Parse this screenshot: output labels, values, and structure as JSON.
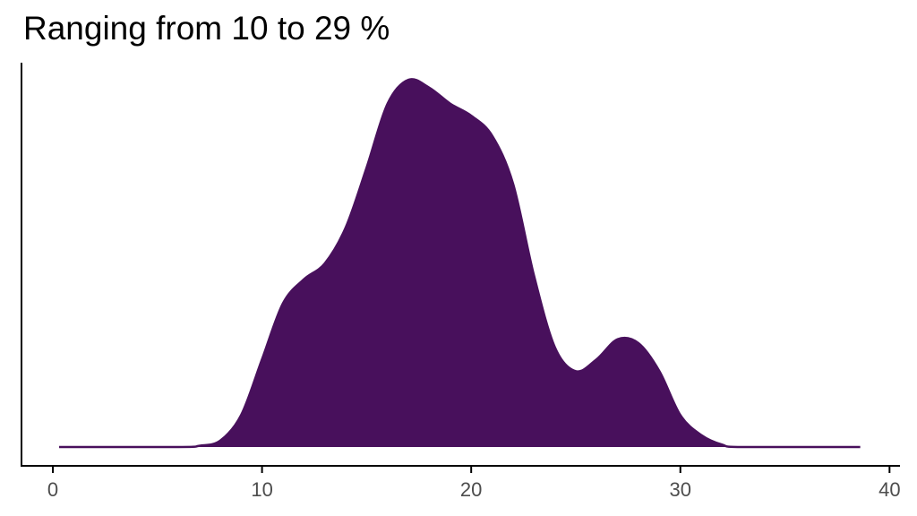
{
  "chart_data": {
    "type": "area",
    "title": "Ranging from 10 to 29 %",
    "xlabel": "",
    "ylabel": "",
    "xlim": [
      -1.5,
      40.5
    ],
    "x_ticks": [
      0,
      10,
      20,
      30,
      40
    ],
    "x_tick_labels": [
      "0",
      "10",
      "20",
      "30",
      "40"
    ],
    "y_ticks_visible": false,
    "grid": false,
    "fill_color": "#48105c",
    "series": [
      {
        "points": [
          [
            0.3,
            0.0
          ],
          [
            6,
            0.0
          ],
          [
            7,
            0.003
          ],
          [
            8,
            0.016
          ],
          [
            9,
            0.08
          ],
          [
            10,
            0.22
          ],
          [
            11,
            0.36
          ],
          [
            12,
            0.42
          ],
          [
            13,
            0.46
          ],
          [
            14,
            0.55
          ],
          [
            15,
            0.7
          ],
          [
            16,
            0.86
          ],
          [
            17,
            0.92
          ],
          [
            18,
            0.9
          ],
          [
            19,
            0.86
          ],
          [
            20,
            0.83
          ],
          [
            21,
            0.78
          ],
          [
            22,
            0.66
          ],
          [
            23,
            0.43
          ],
          [
            24,
            0.25
          ],
          [
            25,
            0.19
          ],
          [
            26,
            0.22
          ],
          [
            27,
            0.27
          ],
          [
            28,
            0.26
          ],
          [
            29,
            0.19
          ],
          [
            30,
            0.08
          ],
          [
            31,
            0.03
          ],
          [
            32,
            0.006
          ],
          [
            33,
            0.0
          ],
          [
            38.6,
            0.0
          ]
        ]
      }
    ]
  }
}
